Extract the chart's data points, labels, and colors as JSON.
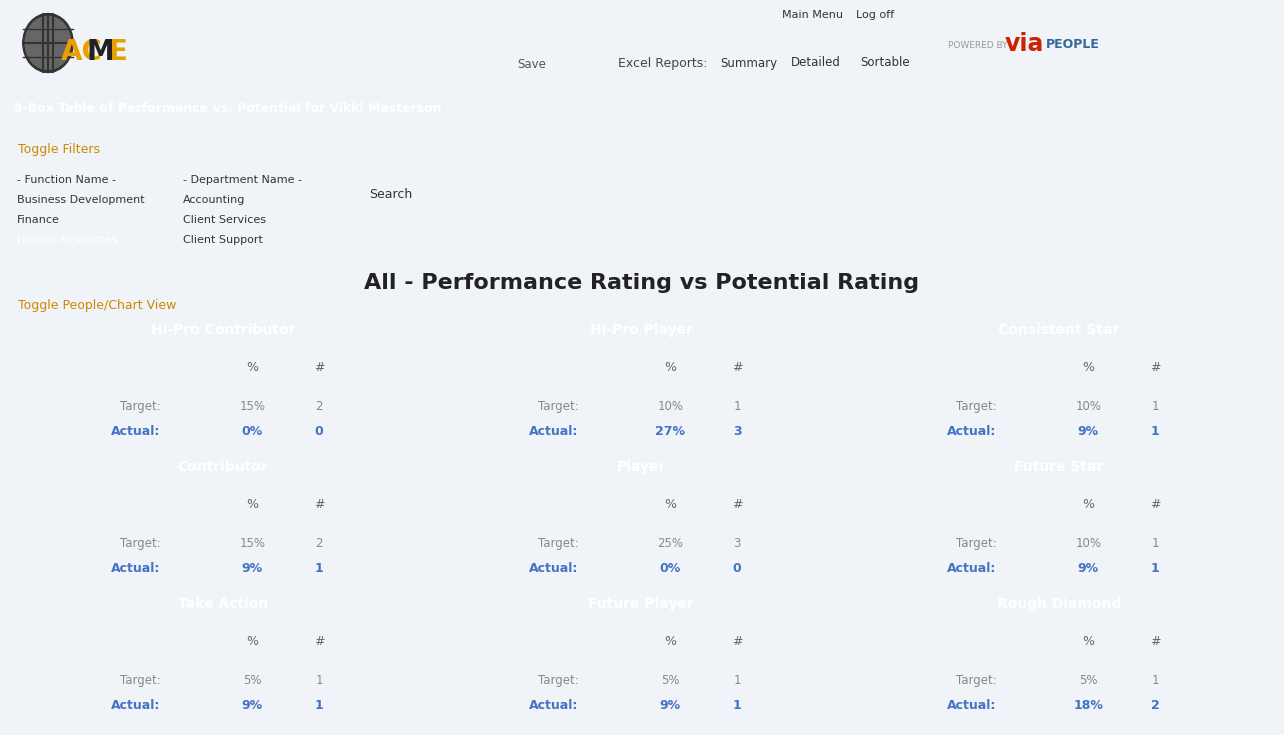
{
  "title": "All - Performance Rating vs Potential Rating",
  "header_bar_color": "#5b8db8",
  "header_text": "9-Box Table of Performance vs. Potential for Vikki Masterson",
  "header_text_color": "#ffffff",
  "nav_bg": "#5b8db8",
  "body_bg": "#f0f4f8",
  "grid_header_color": "#737373",
  "grid_header_text": "#ffffff",
  "boxes": [
    {
      "row": 0,
      "col": 0,
      "title": "Hi-Pro Contributor",
      "bg_color": "#fefef0",
      "target_pct": "15%",
      "target_num": "2",
      "actual_pct": "0%",
      "actual_num": "0"
    },
    {
      "row": 0,
      "col": 1,
      "title": "Hi-Pro Player",
      "bg_color": "#ffffcc",
      "target_pct": "10%",
      "target_num": "1",
      "actual_pct": "27%",
      "actual_num": "3"
    },
    {
      "row": 0,
      "col": 2,
      "title": "Consistent Star",
      "bg_color": "#ccff99",
      "target_pct": "10%",
      "target_num": "1",
      "actual_pct": "9%",
      "actual_num": "1"
    },
    {
      "row": 1,
      "col": 0,
      "title": "Contributor",
      "bg_color": "#fff0f5",
      "target_pct": "15%",
      "target_num": "2",
      "actual_pct": "9%",
      "actual_num": "1"
    },
    {
      "row": 1,
      "col": 1,
      "title": "Player",
      "bg_color": "#ffffcc",
      "target_pct": "25%",
      "target_num": "3",
      "actual_pct": "0%",
      "actual_num": "0"
    },
    {
      "row": 1,
      "col": 2,
      "title": "Future Star",
      "bg_color": "#ccf0ff",
      "target_pct": "10%",
      "target_num": "1",
      "actual_pct": "9%",
      "actual_num": "1"
    },
    {
      "row": 2,
      "col": 0,
      "title": "Take Action",
      "bg_color": "#ffcccc",
      "target_pct": "5%",
      "target_num": "1",
      "actual_pct": "9%",
      "actual_num": "1"
    },
    {
      "row": 2,
      "col": 1,
      "title": "Future Player",
      "bg_color": "#fefef0",
      "target_pct": "5%",
      "target_num": "1",
      "actual_pct": "9%",
      "actual_num": "1"
    },
    {
      "row": 2,
      "col": 2,
      "title": "Rough Diamond",
      "bg_color": "#d0d0ff",
      "target_pct": "5%",
      "target_num": "1",
      "actual_pct": "18%",
      "actual_num": "2"
    }
  ],
  "actual_color": "#4472c4",
  "target_color": "#888888",
  "link_color": "#cc8800",
  "selected_bg": "#3399ee",
  "selected_text": "#ffffff",
  "acme_gold": "#e8a000",
  "via_red": "#cc2200",
  "via_blue": "#336699"
}
